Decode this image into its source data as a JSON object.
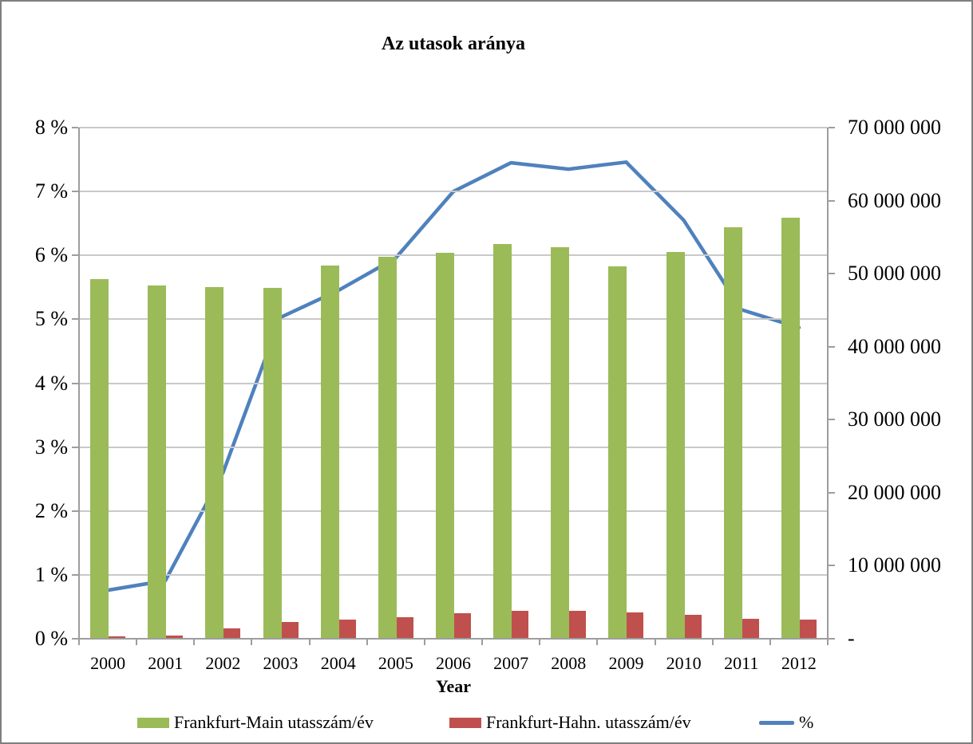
{
  "title": "Az utasok aránya",
  "chart_data": {
    "type": "bar",
    "subtype": "combo-dual-axis-bar-line",
    "title": "Az utasok aránya",
    "xlabel": "Year",
    "categories": [
      "2000",
      "2001",
      "2002",
      "2003",
      "2004",
      "2005",
      "2006",
      "2007",
      "2008",
      "2009",
      "2010",
      "2011",
      "2012"
    ],
    "series": [
      {
        "name": "Frankfurt-Main utasszám/év",
        "type": "bar",
        "axis": "right",
        "color": "#9bbb59",
        "values": [
          49300000,
          48400000,
          48200000,
          48100000,
          51100000,
          52300000,
          52900000,
          54100000,
          53600000,
          51000000,
          53000000,
          56400000,
          57700000
        ]
      },
      {
        "name": "Frankfurt-Hahn. utasszám/év",
        "type": "bar",
        "axis": "right",
        "color": "#c0504d",
        "values": [
          350000,
          450000,
          1400000,
          2300000,
          2600000,
          2900000,
          3450000,
          3800000,
          3800000,
          3600000,
          3300000,
          2700000,
          2600000
        ]
      },
      {
        "name": "%",
        "type": "line",
        "axis": "left",
        "color": "#4f81bd",
        "values": [
          0.76,
          0.91,
          2.6,
          5.03,
          5.45,
          5.96,
          7.0,
          7.45,
          7.35,
          7.46,
          6.55,
          5.15,
          4.87
        ]
      }
    ],
    "left_axis": {
      "ticks": [
        "0 %",
        "1 %",
        "2 %",
        "3 %",
        "4 %",
        "5 %",
        "6 %",
        "7 %",
        "8 %"
      ],
      "ylim": [
        0,
        8
      ]
    },
    "right_axis": {
      "ticks": [
        "-",
        "10 000 000",
        "20 000 000",
        "30 000 000",
        "40 000 000",
        "50 000 000",
        "60 000 000",
        "70 000 000"
      ],
      "ylim": [
        0,
        70000000
      ]
    },
    "grid": true,
    "legend_position": "bottom"
  },
  "legend": [
    {
      "label": "Frankfurt-Main utasszám/év",
      "color": "#9bbb59",
      "type": "bar"
    },
    {
      "label": "Frankfurt-Hahn. utasszám/év",
      "color": "#c0504d",
      "type": "bar"
    },
    {
      "label": "%",
      "color": "#4f81bd",
      "type": "line"
    }
  ],
  "colors": {
    "bar_green": "#9bbb59",
    "bar_red": "#c0504d",
    "line_blue": "#4f81bd",
    "gridline": "#c9c9c9",
    "axis": "#9d9d9d",
    "frame_border": "#7f7f7f"
  }
}
